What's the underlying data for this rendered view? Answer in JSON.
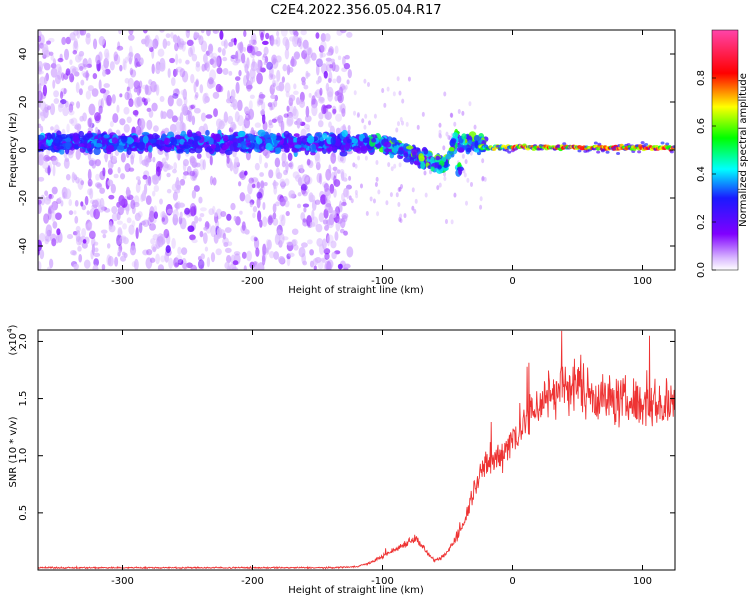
{
  "title": "C2E4.2022.356.05.04.R17",
  "chart_data": [
    {
      "type": "heatmap",
      "xlabel": "Height of straight line (km)",
      "ylabel": "Frequency (Hz)",
      "xlim": [
        -365,
        125
      ],
      "ylim": [
        -50,
        50
      ],
      "xticks": [
        -300,
        -200,
        -100,
        0,
        100
      ],
      "yticks": [
        -40,
        -20,
        0,
        20,
        40
      ],
      "colorbar": {
        "label": "Normalized spectral amplitude",
        "range": [
          0.0,
          1.0
        ],
        "ticks": [
          0.0,
          0.2,
          0.4,
          0.6,
          0.8
        ],
        "tick_labels": [
          "0.0",
          "0.2",
          "0.4",
          "0.6",
          "0.8"
        ],
        "colormap": "rainbow (white, purple, blue, cyan, green, yellow, red, pink)"
      },
      "grid": false
    },
    {
      "type": "line",
      "xlabel": "Height of straight line (km)",
      "ylabel": "SNR (10 * v/v)",
      "y_scale_label": "(x10",
      "y_scale_exp": "4",
      "y_scale_close": ")",
      "xlim": [
        -365,
        125
      ],
      "ylim": [
        0,
        2.1
      ],
      "xticks": [
        -300,
        -200,
        -100,
        0,
        100
      ],
      "yticks": [
        0.5,
        1.0,
        1.5,
        2.0
      ],
      "ytick_labels": [
        "0.5",
        "1.0",
        "1.5",
        "2.0"
      ],
      "color": "#ee3333",
      "grid": false,
      "series": [
        {
          "x": [
            -365,
            -330,
            -300,
            -260,
            -220,
            -180,
            -140,
            -120,
            -110,
            -100,
            -90,
            -80,
            -75,
            -70,
            -65,
            -60,
            -55,
            -50,
            -45,
            -40,
            -35,
            -30,
            -25,
            -20,
            -15,
            -10,
            -5,
            0,
            5,
            10,
            15,
            20,
            25,
            30,
            40,
            50,
            60,
            70,
            80,
            90,
            100,
            110,
            125
          ],
          "values": [
            0.02,
            0.02,
            0.02,
            0.02,
            0.02,
            0.02,
            0.02,
            0.03,
            0.06,
            0.12,
            0.18,
            0.25,
            0.28,
            0.22,
            0.14,
            0.08,
            0.1,
            0.16,
            0.25,
            0.35,
            0.5,
            0.7,
            0.85,
            0.9,
            0.95,
            1.0,
            1.08,
            1.15,
            1.22,
            1.3,
            1.38,
            1.45,
            1.5,
            1.55,
            1.6,
            1.62,
            1.55,
            1.5,
            1.48,
            1.47,
            1.46,
            1.45,
            1.42
          ]
        }
      ]
    }
  ]
}
